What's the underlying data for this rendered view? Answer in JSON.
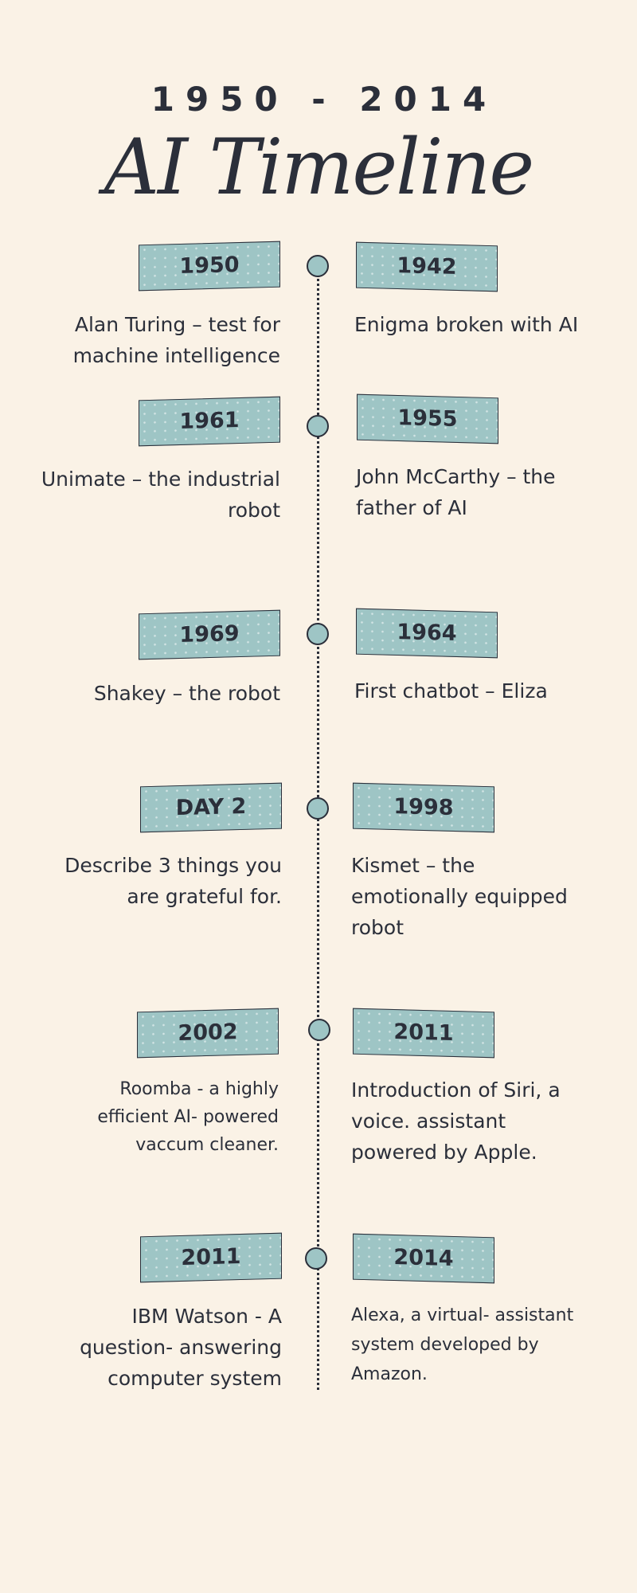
{
  "header": {
    "year_range": "1950 - 2014",
    "title": "AI Timeline"
  },
  "entries": [
    {
      "left_year": "1950",
      "left_text": "Alan Turing – test for machine intelligence",
      "right_year": "1942",
      "right_text": "Enigma broken with AI"
    },
    {
      "left_year": "1961",
      "left_text": "Unimate – the industrial robot",
      "right_year": "1955",
      "right_text": "John McCarthy – the father of AI"
    },
    {
      "left_year": "1969",
      "left_text": "Shakey – the robot",
      "right_year": "1964",
      "right_text": "First chatbot – Eliza"
    },
    {
      "left_year": "DAY 2",
      "left_text": "Describe 3 things you are grateful for.",
      "right_year": "1998",
      "right_text": "Kismet – the emotionally equipped robot"
    },
    {
      "left_year": "2002",
      "left_text": "Roomba - a highly efficient AI- powered vaccum cleaner.",
      "right_year": "2011",
      "right_text": "Introduction of Siri, a voice. assistant powered by Apple."
    },
    {
      "left_year": "2011",
      "left_text": "IBM Watson - A question- answering computer system",
      "right_year": "2014",
      "right_text": "Alexa, a virtual- assistant system developed by Amazon."
    }
  ],
  "colors": {
    "background": "#faf2e6",
    "tag_fill": "#9ec5c5",
    "ink": "#2b2f3a"
  }
}
